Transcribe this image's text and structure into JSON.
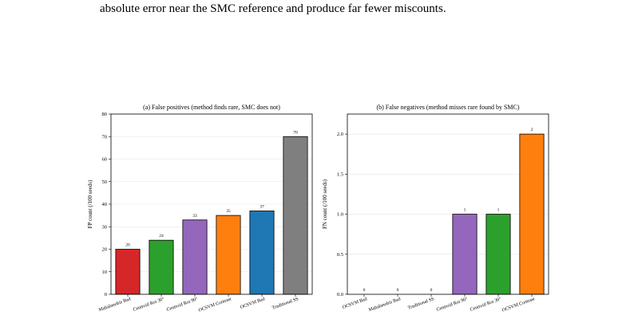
{
  "caption": "absolute error near the SMC reference and produce far fewer miscounts.",
  "chart_data": [
    {
      "type": "bar",
      "title": "(a) False positives (method finds rare, SMC does not)",
      "xlabel": "",
      "ylabel": "FP count (/100 seeds)",
      "categories": [
        "Mahalanobis Bad",
        "Centroid Rot 30°",
        "Centroid Rot 90°",
        "OCSVM Contrast",
        "OCSVM Bad",
        "Traditional SS"
      ],
      "values": [
        20,
        24,
        33,
        35,
        37,
        70
      ],
      "value_labels": [
        "20",
        "24",
        "33",
        "35",
        "37",
        "70"
      ],
      "colors": [
        "#d62728",
        "#2ca02c",
        "#9467bd",
        "#ff7f0e",
        "#1f77b4",
        "#7f7f7f"
      ],
      "ylim": [
        0,
        80
      ],
      "yticks": [
        0,
        10,
        20,
        30,
        40,
        50,
        60,
        70,
        80
      ],
      "ytick_labels": [
        "0",
        "10",
        "20",
        "30",
        "40",
        "50",
        "60",
        "70",
        "80"
      ],
      "grid": "horizontal"
    },
    {
      "type": "bar",
      "title": "(b) False negatives (method misses rare found by SMC)",
      "xlabel": "",
      "ylabel": "FN count (/100 seeds)",
      "categories": [
        "OCSVM Bad",
        "Mahalanobis Bad",
        "Traditional SS",
        "Centroid Rot 90°",
        "Centroid Rot 30°",
        "OCSVM Contrast"
      ],
      "values": [
        0,
        0,
        0,
        1,
        1,
        2
      ],
      "value_labels": [
        "0",
        "0",
        "0",
        "1",
        "1",
        "2"
      ],
      "colors": [
        "#1f77b4",
        "#d62728",
        "#7f7f7f",
        "#9467bd",
        "#2ca02c",
        "#ff7f0e"
      ],
      "ylim": [
        0,
        2.25
      ],
      "yticks": [
        0,
        0.5,
        1.0,
        1.5,
        2.0
      ],
      "ytick_labels": [
        "0.0",
        "0.5",
        "1.0",
        "1.5",
        "2.0"
      ],
      "grid": "horizontal"
    }
  ]
}
